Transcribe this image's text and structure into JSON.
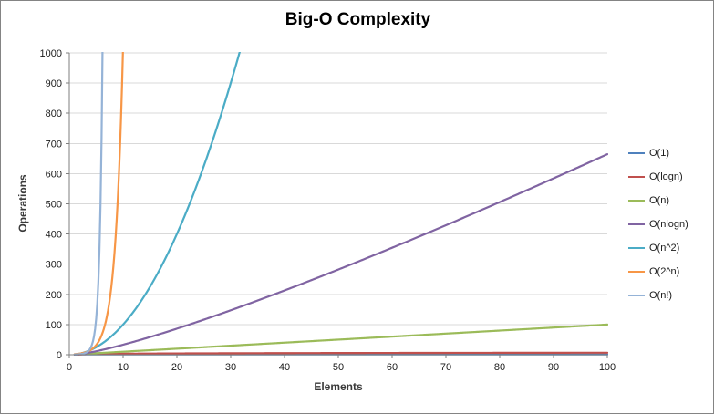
{
  "chart_data": {
    "type": "line",
    "title": "Big-O Complexity",
    "xlabel": "Elements",
    "ylabel": "Operations",
    "xlim": [
      0,
      100
    ],
    "ylim": [
      0,
      1000
    ],
    "x_ticks": [
      0,
      10,
      20,
      30,
      40,
      50,
      60,
      70,
      80,
      90,
      100
    ],
    "y_ticks": [
      0,
      100,
      200,
      300,
      400,
      500,
      600,
      700,
      800,
      900,
      1000
    ],
    "grid": "horizontal",
    "legend_position": "right",
    "axis_color": "#7f7f7f",
    "grid_color": "#d9d9d9",
    "series": [
      {
        "name": "O(1)",
        "formula": "1",
        "color": "#4F81BD"
      },
      {
        "name": "O(logn)",
        "formula": "log2(n)",
        "color": "#C0504D"
      },
      {
        "name": "O(n)",
        "formula": "n",
        "color": "#9BBB59"
      },
      {
        "name": "O(nlogn)",
        "formula": "n*log2(n)",
        "color": "#8064A2"
      },
      {
        "name": "O(n^2)",
        "formula": "n^2",
        "color": "#4BACC6"
      },
      {
        "name": "O(2^n)",
        "formula": "2^n",
        "color": "#F79646"
      },
      {
        "name": "O(n!)",
        "formula": "n!",
        "color": "#95B3D7"
      }
    ]
  }
}
